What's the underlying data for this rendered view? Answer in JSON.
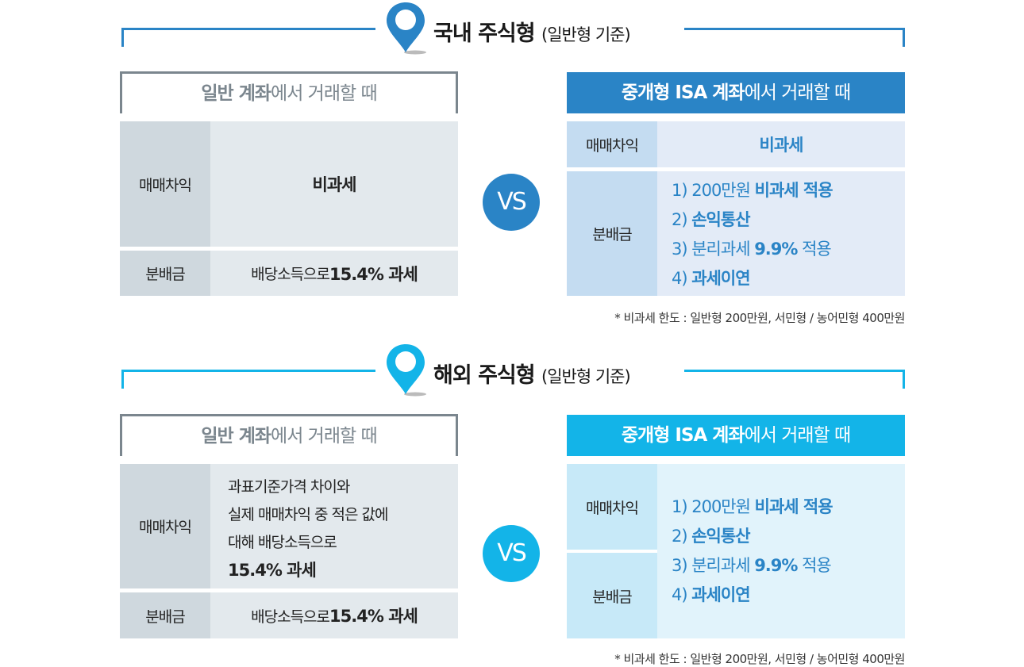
{
  "colors": {
    "domestic": "#2a84c6",
    "overseas": "#13b4e8",
    "gray": "#7b868e"
  },
  "sections": [
    {
      "title": "국내 주식형",
      "title_sub": "(일반형 기준)",
      "general": {
        "head_bold": "일반 계좌",
        "head_rest": "에서 거래할 때",
        "rows": [
          {
            "label": "매매차익",
            "value": "비과세"
          },
          {
            "label": "분배금",
            "value_pre": "배당소득으로 ",
            "value_bold": "15.4% 과세"
          }
        ]
      },
      "vs": "VS",
      "isa": {
        "head_bold": "중개형 ISA 계좌",
        "head_rest": "에서 거래할 때",
        "rows": [
          {
            "label": "매매차익",
            "value": "비과세"
          },
          {
            "label": "분배금"
          }
        ],
        "items": [
          {
            "pre": "1) 200만원 ",
            "bold": "비과세 적용",
            "post": ""
          },
          {
            "pre": "2) ",
            "bold": "손익통산",
            "post": ""
          },
          {
            "pre": "3) 분리과세 ",
            "bold": "9.9%",
            "post": " 적용"
          },
          {
            "pre": "4) ",
            "bold": "과세이연",
            "post": ""
          }
        ]
      },
      "note": "* 비과세 한도 : 일반형 200만원, 서민형 / 농어민형 400만원"
    },
    {
      "title": "해외 주식형",
      "title_sub": "(일반형 기준)",
      "general": {
        "head_bold": "일반 계좌",
        "head_rest": "에서 거래할 때",
        "rows": [
          {
            "label": "매매차익",
            "lines": [
              "과표기준가격 차이와",
              "실제 매매차익 중 적은 값에",
              "대해 배당소득으로"
            ],
            "bold": "15.4% 과세"
          },
          {
            "label": "분배금",
            "value_pre": "배당소득으로 ",
            "value_bold": "15.4% 과세"
          }
        ]
      },
      "vs": "VS",
      "isa": {
        "head_bold": "중개형 ISA 계좌",
        "head_rest": "에서 거래할 때",
        "rows": [
          {
            "label": "매매차익"
          },
          {
            "label": "분배금"
          }
        ],
        "items": [
          {
            "pre": "1) 200만원 ",
            "bold": "비과세 적용",
            "post": ""
          },
          {
            "pre": "2) ",
            "bold": "손익통산",
            "post": ""
          },
          {
            "pre": "3) 분리과세 ",
            "bold": "9.9%",
            "post": " 적용"
          },
          {
            "pre": "4) ",
            "bold": "과세이연",
            "post": ""
          }
        ]
      },
      "note": "* 비과세 한도 : 일반형 200만원, 서민형 / 농어민형 400만원"
    }
  ]
}
